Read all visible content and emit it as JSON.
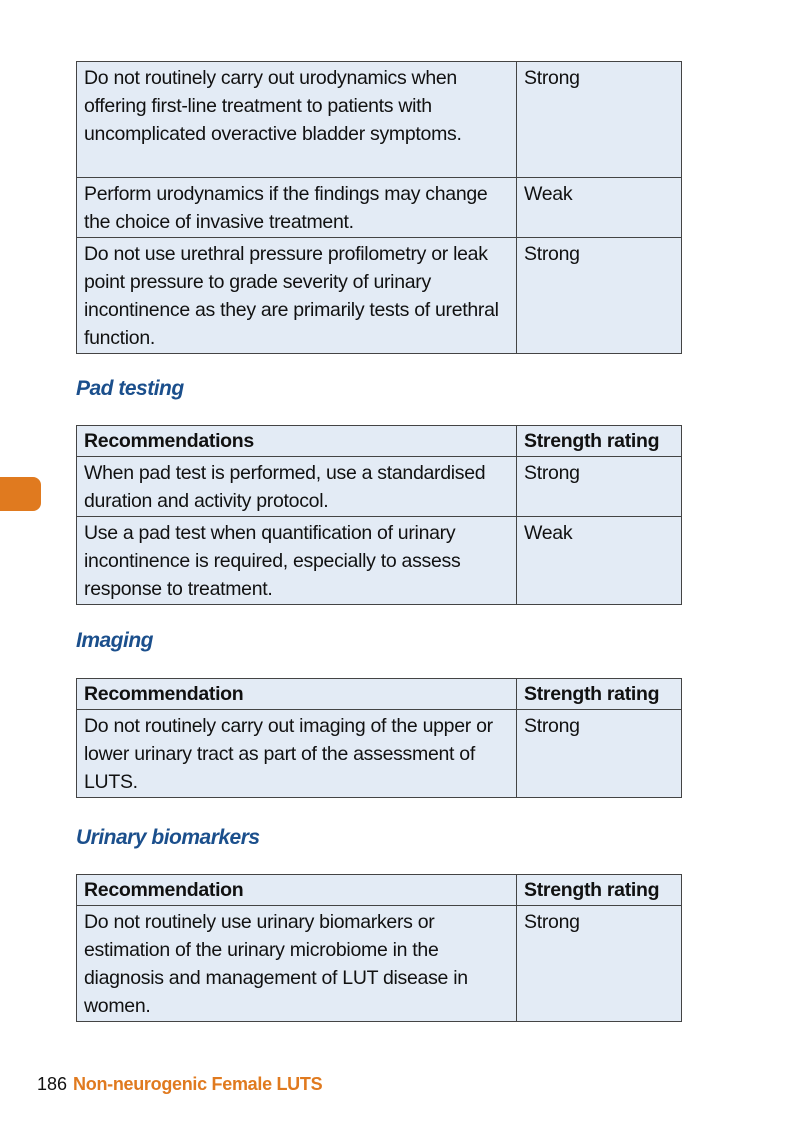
{
  "table_urodynamics": {
    "rows": [
      {
        "rec": "Do not routinely carry out urodynamics when offering first-line treatment to patients with uncomplicated overactive bladder symptoms.",
        "rating": "Strong"
      },
      {
        "rec": "Perform urodynamics if the findings may change the choice of invasive treatment.",
        "rating": "Weak"
      },
      {
        "rec": "Do not use urethral pressure profilometry or leak point pressure to grade severity of urinary incontinence as they are primarily tests of urethral function.",
        "rating": "Strong"
      }
    ]
  },
  "pad_testing": {
    "heading": "Pad testing",
    "header": {
      "rec": "Recommendations",
      "rating": "Strength rating"
    },
    "rows": [
      {
        "rec": "When pad test is performed, use a standardised duration and activity protocol.",
        "rating": "Strong"
      },
      {
        "rec": "Use a pad test when quantification of urinary incontinence is required, especially to assess response to treatment.",
        "rating": "Weak"
      }
    ]
  },
  "imaging": {
    "heading": "Imaging",
    "header": {
      "rec": "Recommendation",
      "rating": "Strength rating"
    },
    "rows": [
      {
        "rec": "Do not routinely carry out imaging of the upper or lower urinary tract as part of the assessment of LUTS.",
        "rating": "Strong"
      }
    ]
  },
  "biomarkers": {
    "heading": "Urinary biomarkers",
    "header": {
      "rec": "Recommendation",
      "rating": "Strength rating"
    },
    "rows": [
      {
        "rec": "Do not routinely use urinary biomarkers or estimation of the urinary microbiome in the diagnosis and management of LUT disease in women.",
        "rating": "Strong"
      }
    ]
  },
  "footer": {
    "page_number": "186",
    "chapter_title": "Non-neurogenic Female LUTS"
  },
  "colors": {
    "heading": "#1b4f8c",
    "accent": "#e07a1f",
    "table_bg": "#e3ebf5"
  }
}
